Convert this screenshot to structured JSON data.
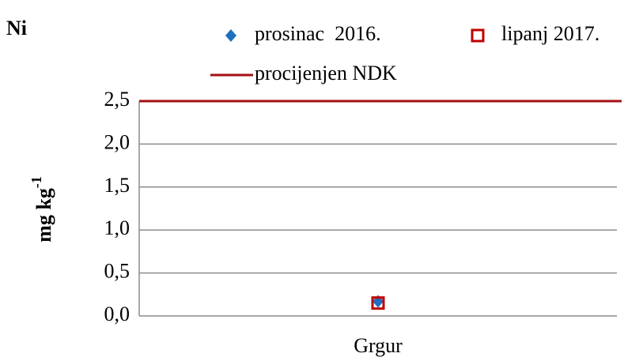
{
  "chart_data": {
    "type": "line",
    "title": "Ni",
    "y_label": {
      "text": "mg kg",
      "superscript": "-1"
    },
    "categories": [
      "Grgur"
    ],
    "series": [
      {
        "name": "prosinac  2016.",
        "color": "#1f6fc0",
        "marker": "diamond",
        "values": [
          0.17
        ]
      },
      {
        "name": "lipanj 2017.",
        "color": "#c00000",
        "marker": "square",
        "values": [
          0.15
        ]
      },
      {
        "name": "procijenjen NDK",
        "color": "#a50f15",
        "marker": "line",
        "values": [
          2.5
        ]
      }
    ],
    "ylim": [
      0,
      2.5
    ],
    "yticks": [
      {
        "value": 0,
        "label": "0,0"
      },
      {
        "value": 0.5,
        "label": "0,5"
      },
      {
        "value": 1,
        "label": "1,0"
      },
      {
        "value": 1.5,
        "label": "1,5"
      },
      {
        "value": 2,
        "label": "2,0"
      },
      {
        "value": 2.5,
        "label": "2,5"
      }
    ],
    "grid": true
  }
}
